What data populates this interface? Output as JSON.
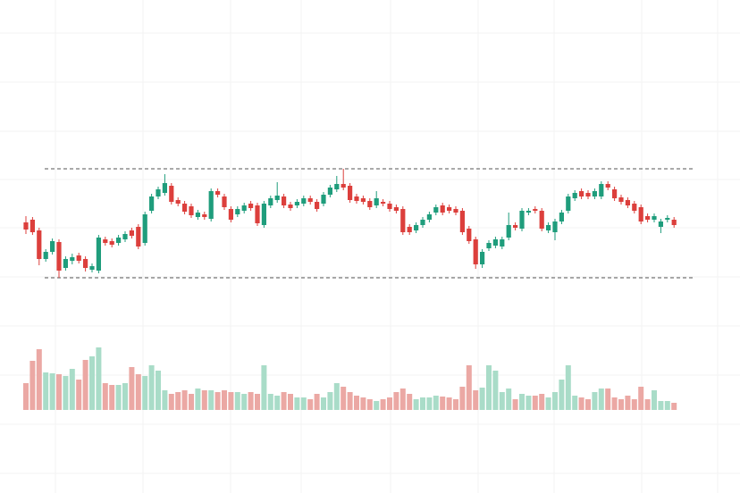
{
  "chart_data": {
    "type": "candlestick",
    "up_color": "#1f9d7c",
    "down_color": "#dc3f3c",
    "volume_up_color": "#a9dcc8",
    "volume_down_color": "#eba8a4",
    "open": [
      151,
      154,
      142,
      110,
      118,
      129,
      100,
      108,
      114,
      110,
      98,
      97,
      132,
      130,
      128,
      132,
      142,
      146,
      128,
      164,
      180,
      184,
      192,
      176,
      172,
      169,
      157,
      160,
      155,
      186,
      180,
      166,
      160,
      164,
      172,
      170,
      148,
      170,
      176,
      180,
      171,
      170,
      172,
      178,
      174,
      172,
      182,
      188,
      194,
      192,
      180,
      178,
      175,
      170,
      174,
      172,
      168,
      166,
      146,
      142,
      148,
      154,
      162,
      170,
      168,
      166,
      164,
      144,
      132,
      104,
      122,
      125,
      124,
      134,
      148,
      144,
      162,
      166,
      164,
      142,
      140,
      152,
      164,
      178,
      186,
      184,
      180,
      180,
      194,
      188,
      179,
      176,
      172,
      168,
      158,
      154,
      146,
      154,
      154
    ],
    "high": [
      158,
      157,
      145,
      121,
      133,
      132,
      113,
      116,
      117,
      113,
      105,
      137,
      135,
      133,
      137,
      141,
      145,
      149,
      163,
      183,
      191,
      205,
      195,
      179,
      175,
      172,
      165,
      163,
      189,
      189,
      183,
      169,
      169,
      173,
      175,
      173,
      175,
      181,
      196,
      183,
      174,
      177,
      181,
      181,
      177,
      185,
      193,
      203,
      211,
      195,
      183,
      181,
      178,
      186,
      177,
      175,
      171,
      169,
      149,
      151,
      157,
      163,
      171,
      173,
      171,
      169,
      167,
      147,
      135,
      121,
      131,
      135,
      135,
      162,
      151,
      167,
      167,
      169,
      167,
      151,
      155,
      165,
      183,
      187,
      189,
      187,
      189,
      197,
      197,
      191,
      182,
      179,
      175,
      171,
      161,
      161,
      155,
      159,
      157
    ],
    "low": [
      138,
      137,
      103,
      107,
      115,
      89,
      97,
      104,
      105,
      96,
      95,
      94,
      125,
      123,
      125,
      129,
      133,
      121,
      125,
      161,
      177,
      181,
      171,
      169,
      160,
      156,
      154,
      154,
      152,
      179,
      165,
      151,
      157,
      161,
      164,
      147,
      145,
      167,
      173,
      167,
      164,
      167,
      169,
      171,
      163,
      169,
      179,
      185,
      187,
      173,
      172,
      171,
      165,
      167,
      169,
      163,
      161,
      137,
      137,
      139,
      145,
      151,
      159,
      159,
      161,
      159,
      137,
      127,
      99,
      100,
      119,
      122,
      121,
      131,
      142,
      141,
      159,
      161,
      141,
      139,
      131,
      149,
      161,
      175,
      177,
      177,
      177,
      177,
      187,
      175,
      171,
      167,
      161,
      149,
      151,
      151,
      139,
      151,
      145
    ],
    "close": [
      143,
      140,
      110,
      118,
      130,
      97,
      110,
      112,
      108,
      100,
      102,
      134,
      128,
      126,
      134,
      138,
      136,
      124,
      160,
      180,
      188,
      195,
      174,
      172,
      163,
      159,
      162,
      157,
      186,
      182,
      168,
      154,
      166,
      170,
      167,
      150,
      172,
      178,
      181,
      170,
      167,
      174,
      178,
      174,
      166,
      182,
      190,
      194,
      190,
      176,
      175,
      174,
      168,
      178,
      172,
      166,
      164,
      140,
      140,
      148,
      154,
      160,
      168,
      162,
      164,
      162,
      140,
      130,
      104,
      118,
      128,
      132,
      132,
      148,
      145,
      164,
      164,
      164,
      144,
      148,
      152,
      162,
      180,
      184,
      180,
      180,
      186,
      194,
      190,
      178,
      174,
      170,
      164,
      152,
      154,
      158,
      152,
      156,
      148
    ],
    "volume": [
      30,
      55,
      68,
      42,
      41,
      40,
      38,
      46,
      34,
      56,
      60,
      70,
      30,
      28,
      28,
      30,
      48,
      40,
      38,
      50,
      44,
      22,
      18,
      20,
      22,
      18,
      24,
      22,
      22,
      20,
      22,
      20,
      20,
      18,
      20,
      18,
      50,
      18,
      16,
      20,
      18,
      14,
      14,
      12,
      18,
      14,
      20,
      30,
      26,
      20,
      16,
      14,
      12,
      10,
      12,
      14,
      20,
      24,
      18,
      12,
      14,
      14,
      16,
      15,
      14,
      12,
      26,
      50,
      22,
      25,
      50,
      44,
      20,
      24,
      12,
      18,
      16,
      16,
      18,
      14,
      20,
      34,
      50,
      16,
      14,
      12,
      20,
      24,
      24,
      14,
      12,
      16,
      12,
      26,
      12,
      22,
      10,
      10,
      8
    ],
    "ylim": [
      89,
      211
    ],
    "volume_ylim": [
      0,
      72
    ]
  }
}
